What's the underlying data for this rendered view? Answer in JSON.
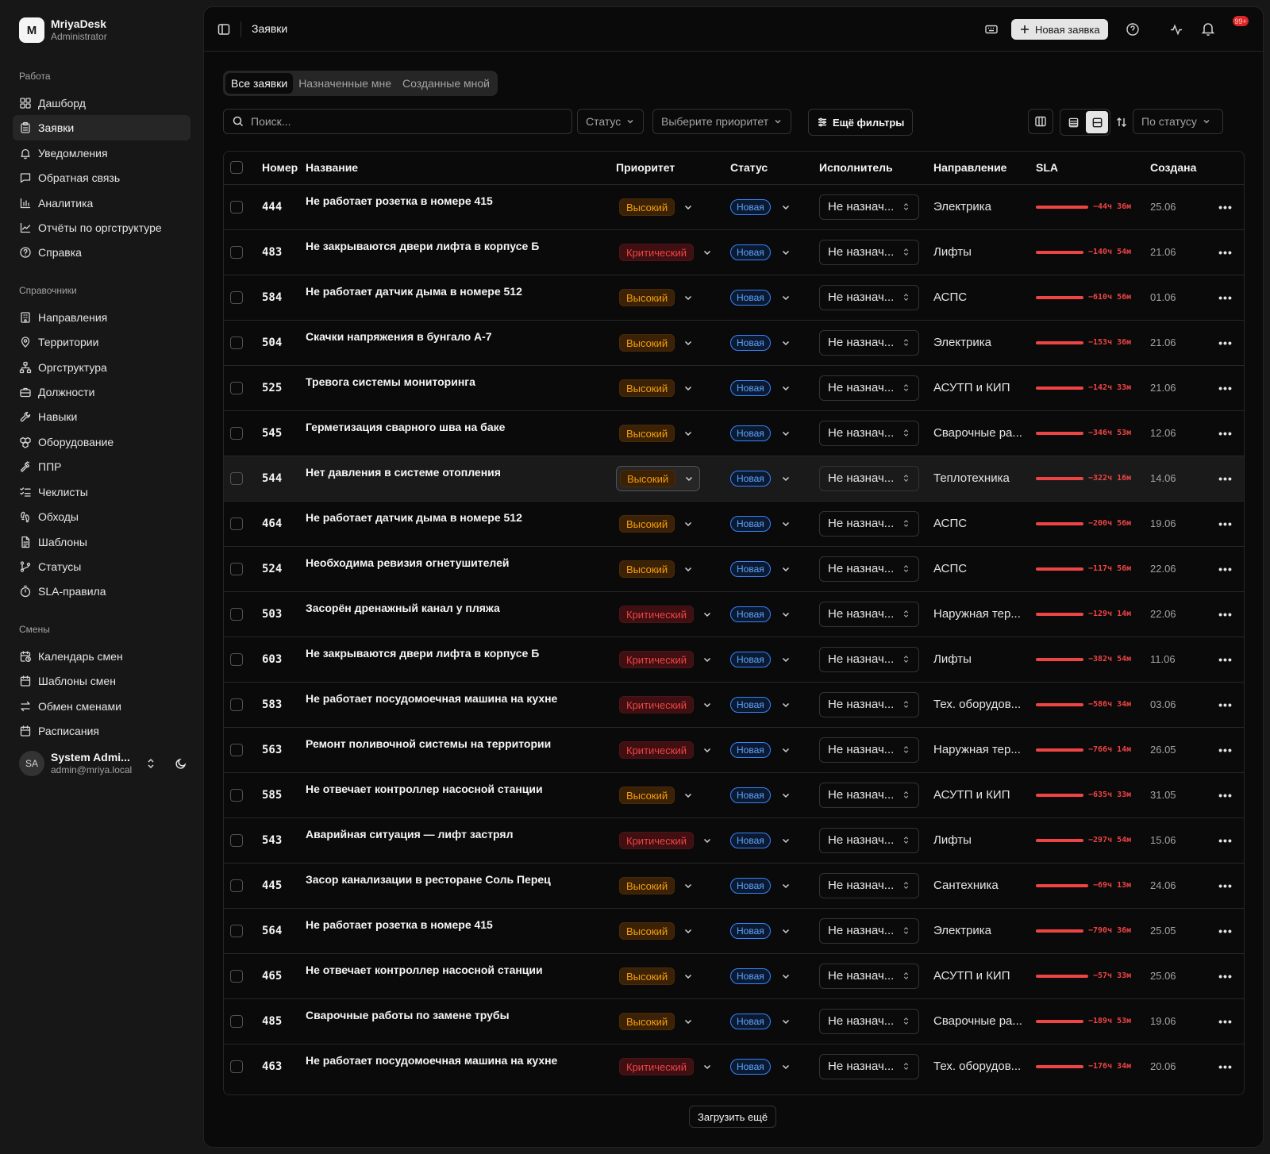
{
  "brand": {
    "logo": "M",
    "name": "MriyaDesk",
    "role": "Administrator"
  },
  "nav": {
    "work_label": "Работа",
    "work": [
      {
        "label": "Дашборд",
        "icon": "dashboard-icon"
      },
      {
        "label": "Заявки",
        "icon": "clipboard-icon",
        "active": true
      },
      {
        "label": "Уведомления",
        "icon": "bell-icon"
      },
      {
        "label": "Обратная связь",
        "icon": "message-icon"
      },
      {
        "label": "Аналитика",
        "icon": "bar-chart-icon"
      },
      {
        "label": "Отчёты по оргструктуре",
        "icon": "line-chart-icon"
      },
      {
        "label": "Справка",
        "icon": "help-icon"
      }
    ],
    "refs_label": "Справочники",
    "refs": [
      {
        "label": "Направления",
        "icon": "building-icon"
      },
      {
        "label": "Территории",
        "icon": "map-pin-icon"
      },
      {
        "label": "Оргструктура",
        "icon": "network-icon"
      },
      {
        "label": "Должности",
        "icon": "briefcase-icon"
      },
      {
        "label": "Навыки",
        "icon": "wrench-icon"
      },
      {
        "label": "Оборудование",
        "icon": "boxes-icon"
      },
      {
        "label": "ППР",
        "icon": "hammer-icon"
      },
      {
        "label": "Чеклисты",
        "icon": "checklist-icon"
      },
      {
        "label": "Обходы",
        "icon": "footprints-icon"
      },
      {
        "label": "Шаблоны",
        "icon": "file-text-icon"
      },
      {
        "label": "Статусы",
        "icon": "git-branch-icon"
      },
      {
        "label": "SLA-правила",
        "icon": "timer-icon"
      }
    ],
    "shifts_label": "Смены",
    "shifts": [
      {
        "label": "Календарь смен",
        "icon": "calendar-clock-icon"
      },
      {
        "label": "Шаблоны смен",
        "icon": "calendar-icon"
      },
      {
        "label": "Обмен сменами",
        "icon": "swap-icon"
      },
      {
        "label": "Расписания",
        "icon": "calendar-icon"
      }
    ]
  },
  "user": {
    "initials": "SA",
    "name": "System Admi...",
    "email": "admin@mriya.local"
  },
  "topbar": {
    "title": "Заявки",
    "new_button": "Новая заявка",
    "notif_count": "99+"
  },
  "tabs": [
    "Все заявки",
    "Назначенные мне",
    "Созданные мной"
  ],
  "filters": {
    "search_placeholder": "Поиск...",
    "status": "Статус",
    "priority": "Выберите приоритет",
    "more": "Ещё фильтры",
    "sort": "По статусу"
  },
  "columns": {
    "number": "Номер",
    "title": "Название",
    "priority": "Приоритет",
    "status": "Статус",
    "assignee": "Исполнитель",
    "direction": "Направление",
    "sla": "SLA",
    "created": "Создана"
  },
  "rows": [
    {
      "num": "444",
      "title": "Не работает розетка в номере 415",
      "priority": "Высокий",
      "status": "Новая",
      "assignee": "Не назнач...",
      "direction": "Электрика",
      "sla": "−44ч 36м",
      "created": "25.06"
    },
    {
      "num": "483",
      "title": "Не закрываются двери лифта в корпусе Б",
      "priority": "Критический",
      "status": "Новая",
      "assignee": "Не назнач...",
      "direction": "Лифты",
      "sla": "−140ч 54м",
      "created": "21.06"
    },
    {
      "num": "584",
      "title": "Не работает датчик дыма в номере 512",
      "priority": "Высокий",
      "status": "Новая",
      "assignee": "Не назнач...",
      "direction": "АСПС",
      "sla": "−610ч 56м",
      "created": "01.06"
    },
    {
      "num": "504",
      "title": "Скачки напряжения в бунгало А-7",
      "priority": "Высокий",
      "status": "Новая",
      "assignee": "Не назнач...",
      "direction": "Электрика",
      "sla": "−153ч 36м",
      "created": "21.06"
    },
    {
      "num": "525",
      "title": "Тревога системы мониторинга",
      "priority": "Высокий",
      "status": "Новая",
      "assignee": "Не назнач...",
      "direction": "АСУТП и КИП",
      "sla": "−142ч 33м",
      "created": "21.06"
    },
    {
      "num": "545",
      "title": "Герметизация сварного шва на баке",
      "priority": "Высокий",
      "status": "Новая",
      "assignee": "Не назнач...",
      "direction": "Сварочные ра...",
      "sla": "−346ч 53м",
      "created": "12.06"
    },
    {
      "num": "544",
      "title": "Нет давления в системе отопления",
      "priority": "Высокий",
      "status": "Новая",
      "assignee": "Не назнач...",
      "direction": "Теплотехника",
      "sla": "−322ч 16м",
      "created": "14.06",
      "highlight": true
    },
    {
      "num": "464",
      "title": "Не работает датчик дыма в номере 512",
      "priority": "Высокий",
      "status": "Новая",
      "assignee": "Не назнач...",
      "direction": "АСПС",
      "sla": "−200ч 56м",
      "created": "19.06"
    },
    {
      "num": "524",
      "title": "Необходима ревизия огнетушителей",
      "priority": "Высокий",
      "status": "Новая",
      "assignee": "Не назнач...",
      "direction": "АСПС",
      "sla": "−117ч 56м",
      "created": "22.06"
    },
    {
      "num": "503",
      "title": "Засорён дренажный канал у пляжа",
      "priority": "Критический",
      "status": "Новая",
      "assignee": "Не назнач...",
      "direction": "Наружная тер...",
      "sla": "−129ч 14м",
      "created": "22.06"
    },
    {
      "num": "603",
      "title": "Не закрываются двери лифта в корпусе Б",
      "priority": "Критический",
      "status": "Новая",
      "assignee": "Не назнач...",
      "direction": "Лифты",
      "sla": "−382ч 54м",
      "created": "11.06"
    },
    {
      "num": "583",
      "title": "Не работает посудомоечная машина на кухне",
      "priority": "Критический",
      "status": "Новая",
      "assignee": "Не назнач...",
      "direction": "Тех. оборудов...",
      "sla": "−586ч 34м",
      "created": "03.06"
    },
    {
      "num": "563",
      "title": "Ремонт поливочной системы на территории",
      "priority": "Критический",
      "status": "Новая",
      "assignee": "Не назнач...",
      "direction": "Наружная тер...",
      "sla": "−766ч 14м",
      "created": "26.05"
    },
    {
      "num": "585",
      "title": "Не отвечает контроллер насосной станции",
      "priority": "Высокий",
      "status": "Новая",
      "assignee": "Не назнач...",
      "direction": "АСУТП и КИП",
      "sla": "−635ч 33м",
      "created": "31.05"
    },
    {
      "num": "543",
      "title": "Аварийная ситуация — лифт застрял",
      "priority": "Критический",
      "status": "Новая",
      "assignee": "Не назнач...",
      "direction": "Лифты",
      "sla": "−297ч 54м",
      "created": "15.06"
    },
    {
      "num": "445",
      "title": "Засор канализации в ресторане Соль Перец",
      "priority": "Высокий",
      "status": "Новая",
      "assignee": "Не назнач...",
      "direction": "Сантехника",
      "sla": "−69ч 13м",
      "created": "24.06"
    },
    {
      "num": "564",
      "title": "Не работает розетка в номере 415",
      "priority": "Высокий",
      "status": "Новая",
      "assignee": "Не назнач...",
      "direction": "Электрика",
      "sla": "−790ч 36м",
      "created": "25.05"
    },
    {
      "num": "465",
      "title": "Не отвечает контроллер насосной станции",
      "priority": "Высокий",
      "status": "Новая",
      "assignee": "Не назнач...",
      "direction": "АСУТП и КИП",
      "sla": "−57ч 33м",
      "created": "25.06"
    },
    {
      "num": "485",
      "title": "Сварочные работы по замене трубы",
      "priority": "Высокий",
      "status": "Новая",
      "assignee": "Не назнач...",
      "direction": "Сварочные ра...",
      "sla": "−189ч 53м",
      "created": "19.06"
    },
    {
      "num": "463",
      "title": "Не работает посудомоечная машина на кухне",
      "priority": "Критический",
      "status": "Новая",
      "assignee": "Не назнач...",
      "direction": "Тех. оборудов...",
      "sla": "−176ч 34м",
      "created": "20.06"
    }
  ],
  "load_more": "Загрузить ещё",
  "colors": {
    "high": "#f59e0b",
    "critical": "#ef4444",
    "status": "#3b82f6",
    "sla": "#ef4444"
  }
}
